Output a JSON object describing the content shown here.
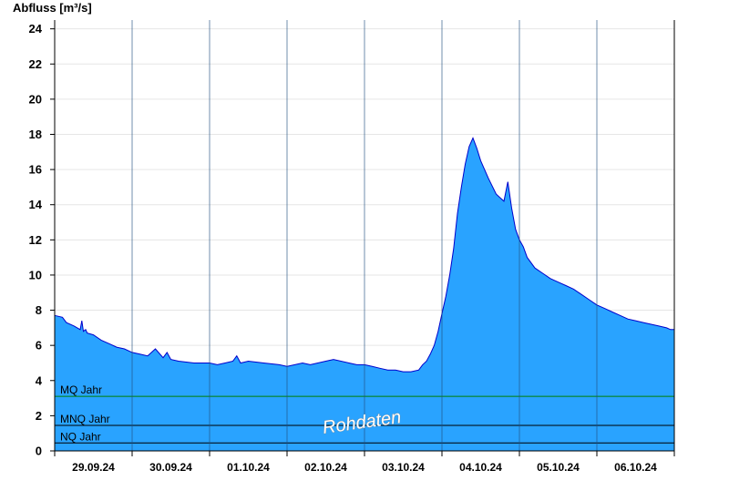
{
  "chart_data": {
    "type": "area",
    "ylabel": "Abfluss [m³/s]",
    "ylim": [
      0,
      24.5
    ],
    "yticks": [
      0,
      2,
      4,
      6,
      8,
      10,
      12,
      14,
      16,
      18,
      20,
      22,
      24
    ],
    "grid": true,
    "x_days": [
      "29.09.24",
      "30.09.24",
      "01.10.24",
      "02.10.24",
      "03.10.24",
      "04.10.24",
      "05.10.24",
      "06.10.24"
    ],
    "xlim": [
      0,
      8
    ],
    "fill_color": "#29a3ff",
    "line_color": "#0000cc",
    "watermark": "Rohdaten",
    "reference_lines": [
      {
        "label": "MQ Jahr",
        "value": 3.1,
        "color": "#008000"
      },
      {
        "label": "MNQ Jahr",
        "value": 1.45,
        "color": "#000000"
      },
      {
        "label": "NQ Jahr",
        "value": 0.45,
        "color": "#000000"
      }
    ],
    "series": [
      {
        "x": [
          0,
          0.1,
          0.15,
          0.25,
          0.33,
          0.35,
          0.37,
          0.4,
          0.42,
          0.5,
          0.6,
          0.7,
          0.8,
          0.9,
          1.0,
          1.1,
          1.2,
          1.3,
          1.4,
          1.45,
          1.5,
          1.6,
          1.8,
          2.0,
          2.1,
          2.2,
          2.3,
          2.35,
          2.4,
          2.5,
          2.7,
          2.9,
          3.0,
          3.2,
          3.3,
          3.5,
          3.6,
          3.8,
          3.9,
          4.0,
          4.1,
          4.2,
          4.3,
          4.4,
          4.5,
          4.6,
          4.7,
          4.75,
          4.8,
          4.85,
          4.9,
          4.95,
          5.0,
          5.05,
          5.1,
          5.15,
          5.2,
          5.25,
          5.3,
          5.35,
          5.4,
          5.45,
          5.5,
          5.52,
          5.6,
          5.7,
          5.8,
          5.85,
          5.9,
          5.95,
          6.0,
          6.05,
          6.1,
          6.2,
          6.3,
          6.4,
          6.5,
          6.6,
          6.7,
          6.8,
          6.9,
          7.0,
          7.1,
          7.2,
          7.3,
          7.4,
          7.5,
          7.6,
          7.7,
          7.8,
          7.9,
          7.95,
          8.0
        ],
        "y": [
          7.7,
          7.6,
          7.3,
          7.1,
          6.9,
          7.4,
          6.8,
          6.9,
          6.7,
          6.6,
          6.3,
          6.1,
          5.9,
          5.8,
          5.6,
          5.5,
          5.4,
          5.8,
          5.3,
          5.6,
          5.2,
          5.1,
          5.0,
          5.0,
          4.9,
          5.0,
          5.1,
          5.4,
          5.0,
          5.1,
          5.0,
          4.9,
          4.8,
          5.0,
          4.9,
          5.1,
          5.2,
          5.0,
          4.9,
          4.9,
          4.8,
          4.7,
          4.6,
          4.6,
          4.5,
          4.5,
          4.6,
          4.9,
          5.1,
          5.5,
          6.0,
          6.8,
          7.8,
          8.8,
          10.0,
          11.5,
          13.5,
          15.0,
          16.3,
          17.3,
          17.8,
          17.2,
          16.5,
          16.3,
          15.5,
          14.6,
          14.2,
          15.3,
          13.8,
          12.6,
          12.0,
          11.6,
          11.0,
          10.4,
          10.1,
          9.8,
          9.6,
          9.4,
          9.2,
          8.9,
          8.6,
          8.3,
          8.1,
          7.9,
          7.7,
          7.5,
          7.4,
          7.3,
          7.2,
          7.1,
          7.0,
          6.9,
          6.9
        ]
      }
    ]
  }
}
